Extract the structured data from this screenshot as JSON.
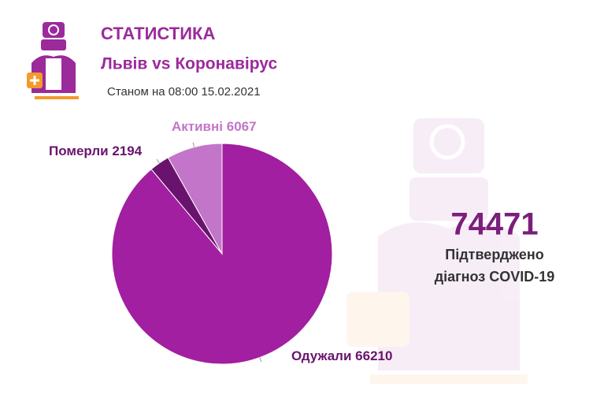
{
  "header": {
    "title": "СТАТИСТИКА",
    "subtitle": "Львів vs Коронавірус",
    "date": "Станом на 08:00 15.02.2021"
  },
  "chart_data": {
    "type": "pie",
    "categories": [
      "Одужали",
      "Померли",
      "Активні"
    ],
    "values": [
      66210,
      2194,
      6067
    ],
    "colors": [
      "#a11fa0",
      "#6a136e",
      "#c375c9"
    ]
  },
  "summary": {
    "value": 74471,
    "label_lines": [
      "Підтверджено",
      "діагноз COVID-19"
    ]
  }
}
